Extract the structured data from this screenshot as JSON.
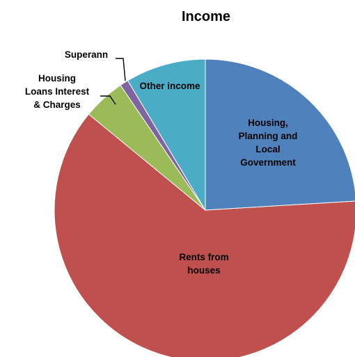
{
  "chart_data": {
    "type": "pie",
    "title": "Income",
    "slices": [
      {
        "label": "Housing, Planning and Local Government",
        "value": 23.8,
        "color": "#4f81bd"
      },
      {
        "label": "Rents from houses",
        "value": 61.3,
        "color": "#c0504d"
      },
      {
        "label": "Housing Loans Interest & Charges",
        "value": 4.5,
        "color": "#9bbb59"
      },
      {
        "label": "Superann",
        "value": 0.9,
        "color": "#8064a2"
      },
      {
        "label": "Other income",
        "value": 8.5,
        "color": "#4bacc6"
      }
    ],
    "legend": "none"
  }
}
